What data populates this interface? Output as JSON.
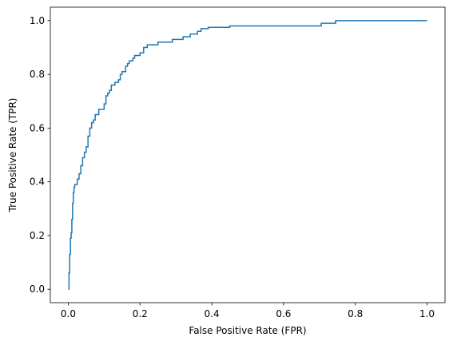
{
  "chart_data": {
    "type": "line",
    "title": "",
    "xlabel": "False Positive Rate (FPR)",
    "ylabel": "True Positive Rate (TPR)",
    "xlim": [
      -0.05,
      1.05
    ],
    "ylim": [
      -0.05,
      1.05
    ],
    "xticks": [
      0.0,
      0.2,
      0.4,
      0.6,
      0.8,
      1.0
    ],
    "yticks": [
      0.0,
      0.2,
      0.4,
      0.6,
      0.8,
      1.0
    ],
    "xtick_labels": [
      "0.0",
      "0.2",
      "0.4",
      "0.6",
      "0.8",
      "1.0"
    ],
    "ytick_labels": [
      "0.0",
      "0.2",
      "0.4",
      "0.6",
      "0.8",
      "1.0"
    ],
    "grid": false,
    "legend": false,
    "series": [
      {
        "color": "#1f77b4",
        "step": true,
        "x": [
          0.0,
          0.002,
          0.004,
          0.006,
          0.008,
          0.01,
          0.012,
          0.014,
          0.016,
          0.018,
          0.02,
          0.025,
          0.03,
          0.035,
          0.04,
          0.045,
          0.05,
          0.055,
          0.06,
          0.065,
          0.07,
          0.075,
          0.08,
          0.085,
          0.09,
          0.1,
          0.105,
          0.11,
          0.115,
          0.12,
          0.125,
          0.13,
          0.14,
          0.145,
          0.15,
          0.16,
          0.165,
          0.17,
          0.18,
          0.185,
          0.19,
          0.2,
          0.21,
          0.22,
          0.23,
          0.25,
          0.27,
          0.29,
          0.3,
          0.32,
          0.34,
          0.36,
          0.37,
          0.39,
          0.45,
          0.5,
          0.55,
          0.6,
          0.65,
          0.705,
          0.745,
          0.8,
          0.9,
          1.0
        ],
        "y": [
          0.0,
          0.06,
          0.13,
          0.19,
          0.21,
          0.26,
          0.32,
          0.36,
          0.38,
          0.39,
          0.39,
          0.41,
          0.43,
          0.46,
          0.49,
          0.51,
          0.53,
          0.57,
          0.6,
          0.62,
          0.63,
          0.65,
          0.65,
          0.67,
          0.67,
          0.69,
          0.72,
          0.73,
          0.74,
          0.76,
          0.76,
          0.77,
          0.78,
          0.8,
          0.81,
          0.83,
          0.84,
          0.85,
          0.86,
          0.87,
          0.87,
          0.88,
          0.9,
          0.91,
          0.91,
          0.92,
          0.92,
          0.93,
          0.93,
          0.94,
          0.95,
          0.96,
          0.97,
          0.975,
          0.98,
          0.98,
          0.98,
          0.98,
          0.98,
          0.99,
          1.0,
          1.0,
          1.0,
          1.0
        ]
      }
    ]
  }
}
